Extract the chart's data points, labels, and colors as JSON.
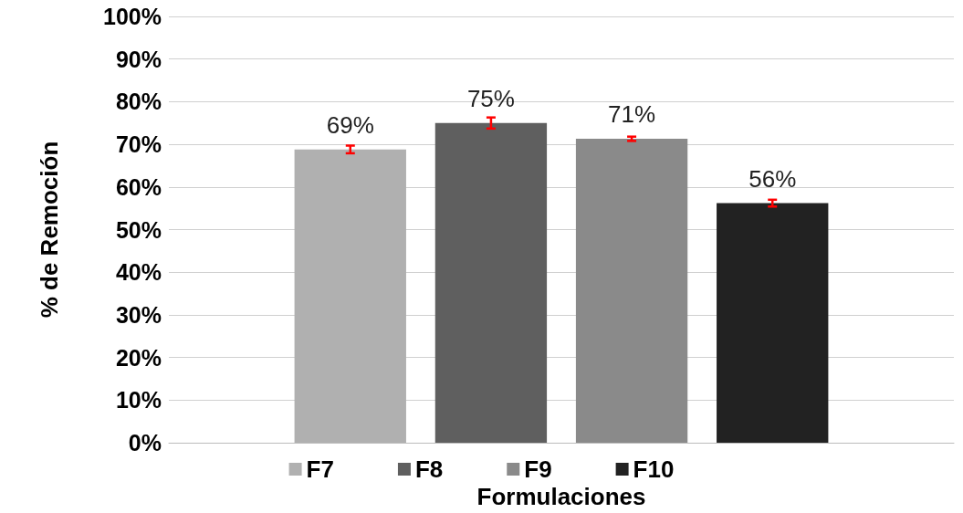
{
  "chart_data": {
    "type": "bar",
    "xlabel": "Formulaciones",
    "ylabel": "% de Remoción",
    "categories": [
      null
    ],
    "series": [
      {
        "name": "F7",
        "color": "#b0b0b0",
        "values": [
          68.8
        ],
        "errors": [
          0.9
        ],
        "value_labels": [
          "69%"
        ]
      },
      {
        "name": "F8",
        "color": "#5f5f5f",
        "values": [
          75
        ],
        "errors": [
          1.3
        ],
        "value_labels": [
          "75%"
        ]
      },
      {
        "name": "F9",
        "color": "#8a8a8a",
        "values": [
          71.3
        ],
        "errors": [
          0.5
        ],
        "value_labels": [
          "71%"
        ]
      },
      {
        "name": "F10",
        "color": "#222222",
        "values": [
          56.2
        ],
        "errors": [
          0.8
        ],
        "value_labels": [
          "56%"
        ]
      }
    ],
    "ylim": [
      0,
      100
    ],
    "yticks": [
      {
        "value": 0,
        "label": "0%"
      },
      {
        "value": 10,
        "label": "10%"
      },
      {
        "value": 20,
        "label": "20%"
      },
      {
        "value": 30,
        "label": "30%"
      },
      {
        "value": 40,
        "label": "40%"
      },
      {
        "value": 50,
        "label": "50%"
      },
      {
        "value": 60,
        "label": "60%"
      },
      {
        "value": 70,
        "label": "70%"
      },
      {
        "value": 80,
        "label": "80%"
      },
      {
        "value": 90,
        "label": "90%"
      },
      {
        "value": 100,
        "label": "100%"
      }
    ],
    "grid": true,
    "legend": "bottom"
  }
}
